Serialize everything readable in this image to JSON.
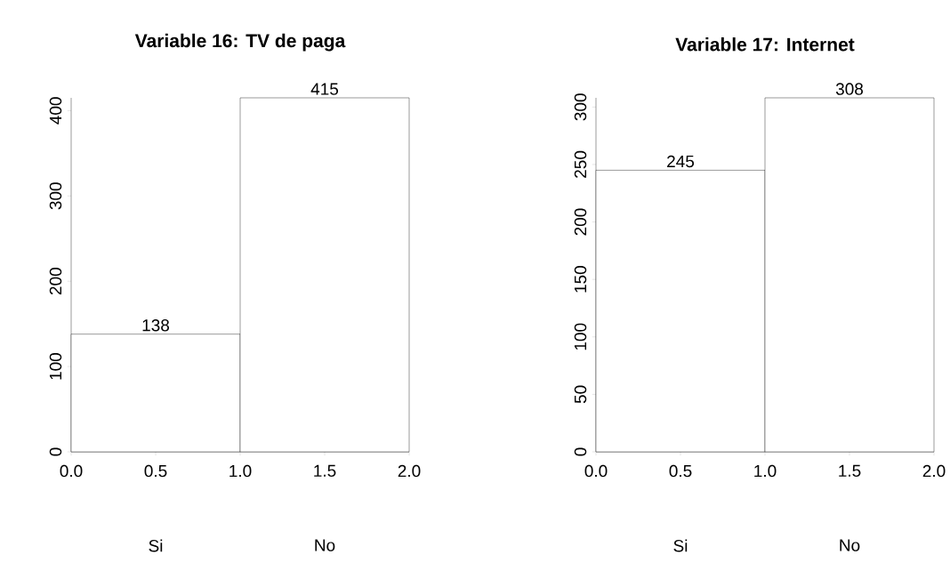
{
  "chart_data": [
    {
      "type": "histogram",
      "title": "Variable 16: TV de paga",
      "bins": [
        0,
        1,
        2
      ],
      "values": [
        138,
        415
      ],
      "color": "#ffffff",
      "data_labels": true,
      "xlim": [
        0,
        2
      ],
      "ylim": [
        0,
        415
      ],
      "xticks": [
        {
          "value": 0,
          "label": "0.0"
        },
        {
          "value": 0.5,
          "label": "0.5"
        },
        {
          "value": 1,
          "label": "1.0"
        },
        {
          "value": 1.5,
          "label": "1.5"
        },
        {
          "value": 2,
          "label": "2.0"
        }
      ],
      "yticks": [
        0,
        100,
        200,
        300,
        400
      ],
      "annotations": [
        "Si",
        "No"
      ]
    },
    {
      "type": "histogram",
      "title": "Variable 17: Internet",
      "bins": [
        0,
        1,
        2
      ],
      "values": [
        245,
        308
      ],
      "color": "#ffffff",
      "data_labels": true,
      "xlim": [
        0,
        2
      ],
      "ylim": [
        0,
        308
      ],
      "xticks": [
        {
          "value": 0,
          "label": "0.0"
        },
        {
          "value": 0.5,
          "label": "0.5"
        },
        {
          "value": 1,
          "label": "1.0"
        },
        {
          "value": 1.5,
          "label": "1.5"
        },
        {
          "value": 2,
          "label": "2.0"
        }
      ],
      "yticks": [
        0,
        50,
        100,
        150,
        200,
        250,
        300
      ],
      "annotations": [
        "Si",
        "No"
      ]
    }
  ]
}
